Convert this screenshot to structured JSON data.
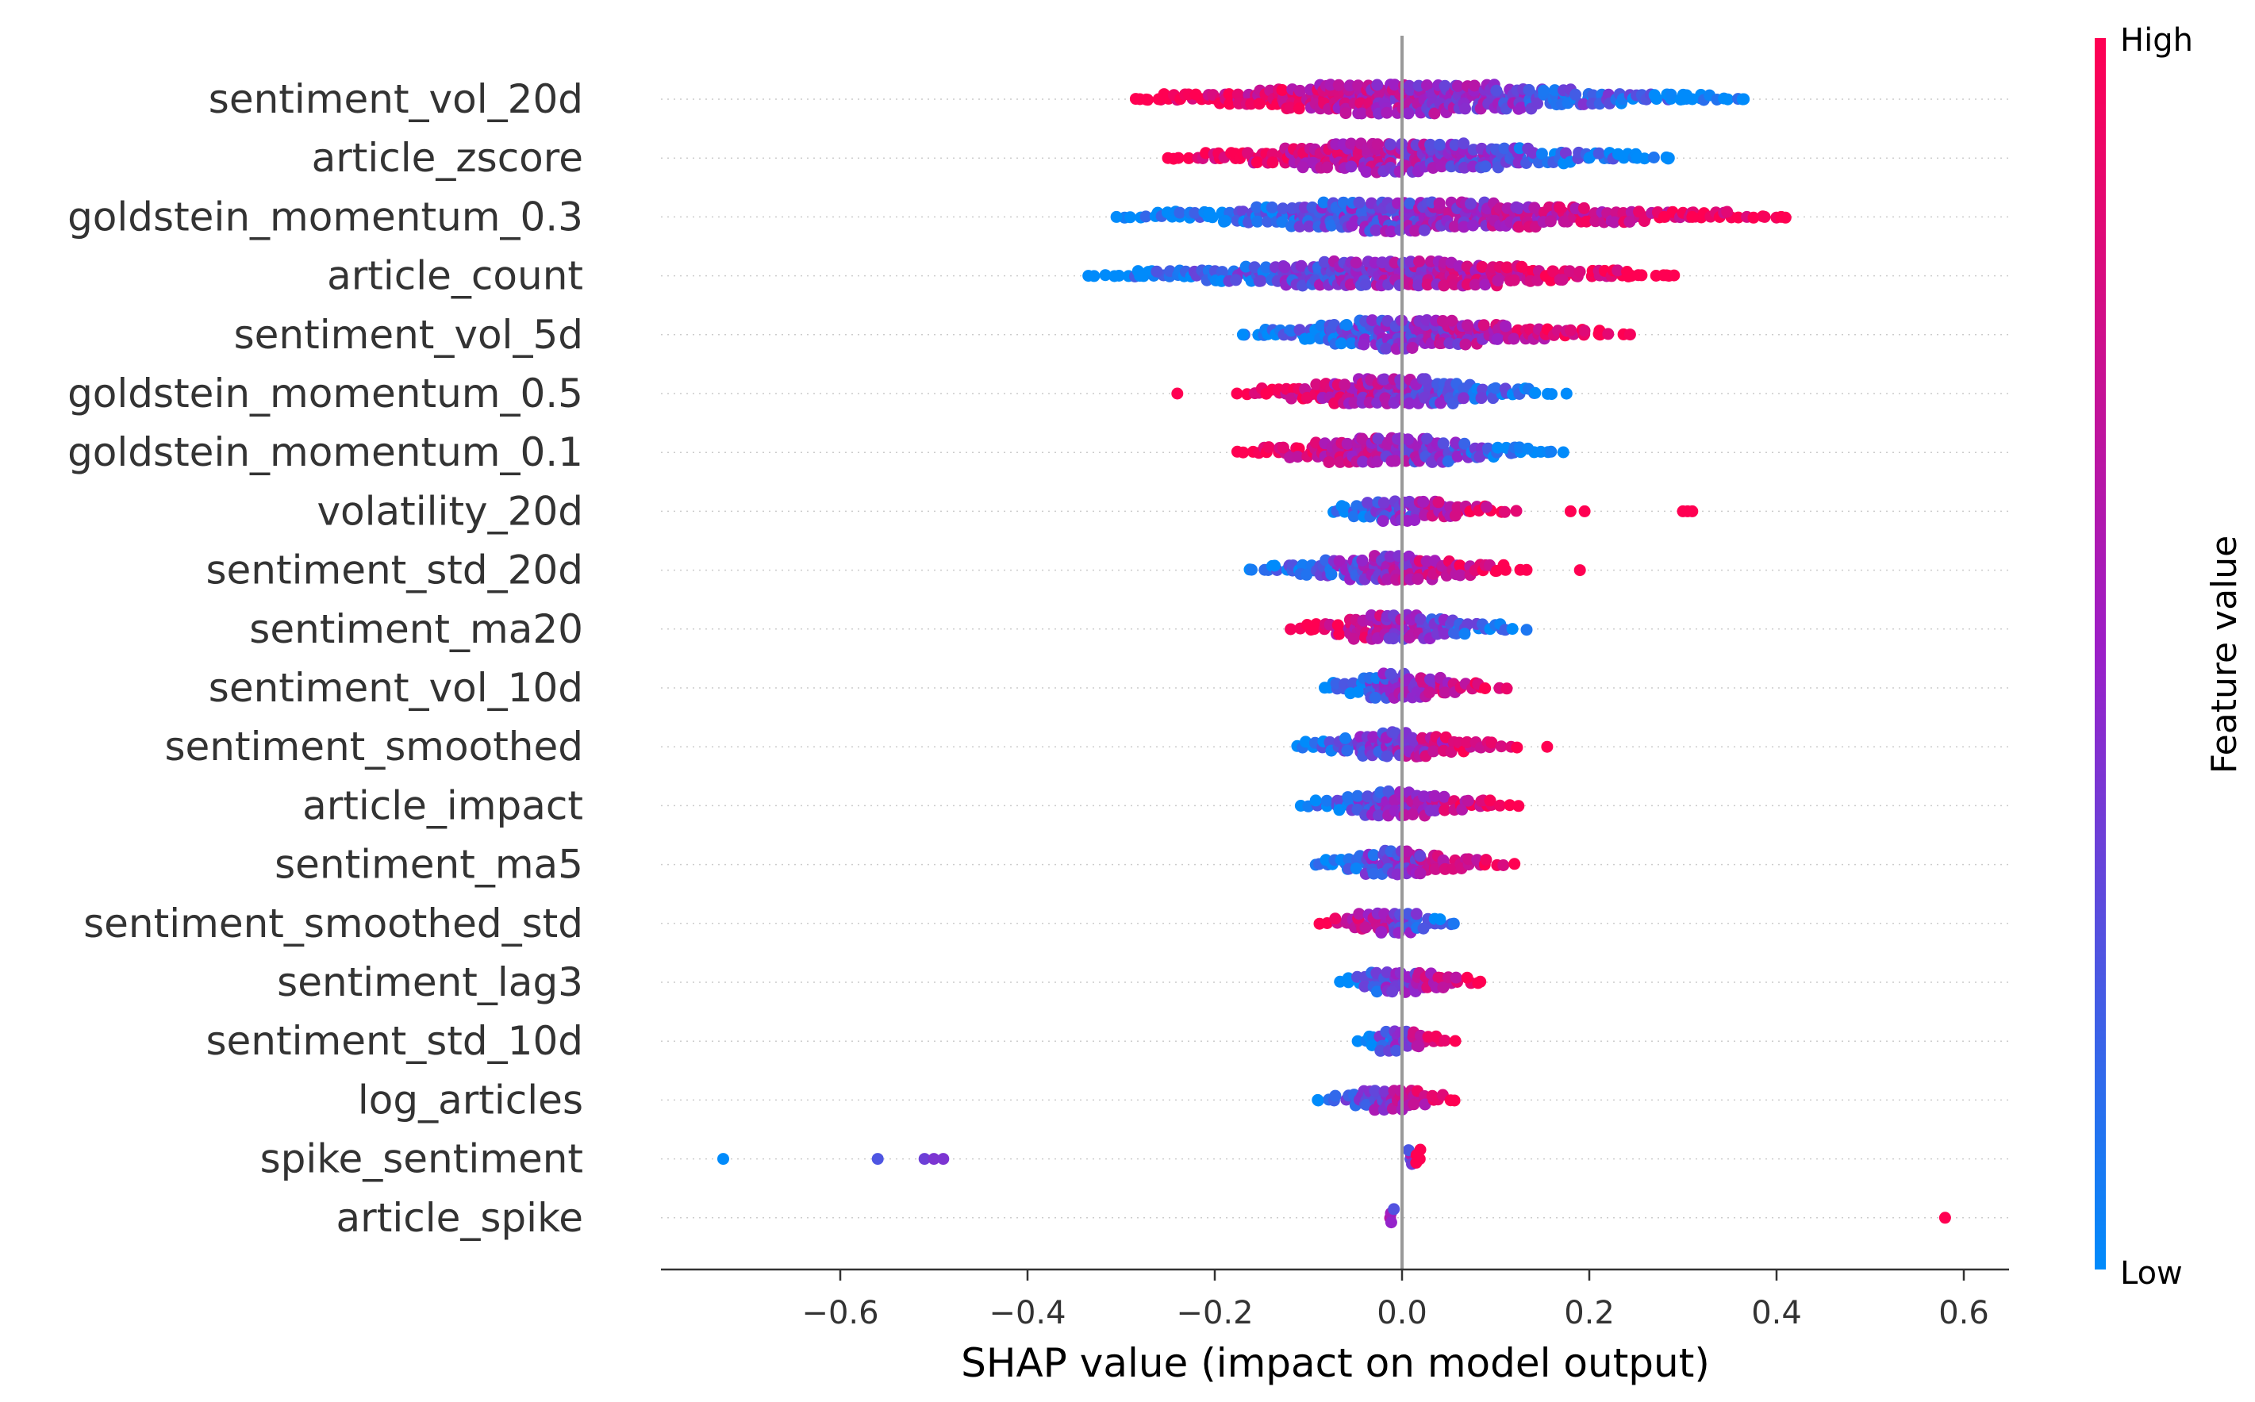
{
  "chart_data": {
    "type": "scatter",
    "subtype": "shap-beeswarm",
    "xlabel": "SHAP value (impact on model output)",
    "xlim": [
      -0.79,
      0.65
    ],
    "xticks": [
      -0.6,
      -0.4,
      -0.2,
      0.0,
      0.2,
      0.4,
      0.6
    ],
    "xtick_labels": [
      "−0.6",
      "−0.4",
      "−0.2",
      "0.0",
      "0.2",
      "0.4",
      "0.6"
    ],
    "zero_line": 0.0,
    "grid": false,
    "colorbar": {
      "label": "Feature value",
      "high_label": "High",
      "low_label": "Low",
      "low_color": "#008bfb",
      "mid_color": "#9b1fc8",
      "high_color": "#ff0052"
    },
    "features": [
      {
        "name": "sentiment_vol_20d",
        "low": -0.29,
        "high": 0.37,
        "density": 1.0,
        "color_dir": -1,
        "outliers": [
          [
            -0.26,
            1.0
          ],
          [
            -0.28,
            1.0
          ],
          [
            0.3,
            0.0
          ],
          [
            0.31,
            0.0
          ],
          [
            0.365,
            0.0
          ]
        ]
      },
      {
        "name": "article_zscore",
        "low": -0.25,
        "high": 0.29,
        "density": 0.95,
        "color_dir": -1,
        "outliers": [
          [
            -0.25,
            1.0
          ],
          [
            0.285,
            0.0
          ]
        ]
      },
      {
        "name": "goldstein_momentum_0.3",
        "low": -0.3,
        "high": 0.41,
        "density": 0.95,
        "color_dir": 1,
        "outliers": [
          [
            -0.305,
            0.0
          ],
          [
            0.28,
            1.0
          ],
          [
            0.31,
            1.0
          ],
          [
            0.405,
            1.0
          ]
        ]
      },
      {
        "name": "article_count",
        "low": -0.33,
        "high": 0.29,
        "density": 0.9,
        "color_dir": 1,
        "outliers": [
          [
            -0.335,
            0.0
          ],
          [
            -0.28,
            0.0
          ],
          [
            0.245,
            1.0
          ],
          [
            0.285,
            1.0
          ]
        ]
      },
      {
        "name": "sentiment_vol_5d",
        "low": -0.17,
        "high": 0.24,
        "density": 0.95,
        "color_dir": 1,
        "outliers": [
          [
            -0.17,
            0.0
          ]
        ]
      },
      {
        "name": "goldstein_momentum_0.5",
        "low": -0.18,
        "high": 0.17,
        "density": 0.9,
        "color_dir": -1,
        "outliers": [
          [
            -0.24,
            1.0
          ]
        ]
      },
      {
        "name": "goldstein_momentum_0.1",
        "low": -0.18,
        "high": 0.17,
        "density": 0.9,
        "color_dir": -1,
        "outliers": []
      },
      {
        "name": "volatility_20d",
        "low": -0.08,
        "high": 0.12,
        "density": 0.75,
        "color_dir": 1,
        "outliers": [
          [
            0.18,
            1.0
          ],
          [
            0.195,
            1.0
          ],
          [
            0.3,
            1.0
          ],
          [
            0.305,
            1.0
          ],
          [
            0.31,
            1.0
          ]
        ]
      },
      {
        "name": "sentiment_std_20d",
        "low": -0.17,
        "high": 0.13,
        "density": 0.8,
        "color_dir": 1,
        "outliers": [
          [
            0.19,
            1.0
          ]
        ]
      },
      {
        "name": "sentiment_ma20",
        "low": -0.12,
        "high": 0.13,
        "density": 0.85,
        "color_dir": -1,
        "outliers": []
      },
      {
        "name": "sentiment_vol_10d",
        "low": -0.09,
        "high": 0.11,
        "density": 0.8,
        "color_dir": 1,
        "outliers": []
      },
      {
        "name": "sentiment_smoothed",
        "low": -0.12,
        "high": 0.12,
        "density": 0.8,
        "color_dir": 1,
        "outliers": [
          [
            0.155,
            1.0
          ]
        ]
      },
      {
        "name": "article_impact",
        "low": -0.11,
        "high": 0.12,
        "density": 0.8,
        "color_dir": 1,
        "outliers": []
      },
      {
        "name": "sentiment_ma5",
        "low": -0.1,
        "high": 0.12,
        "density": 0.8,
        "color_dir": 1,
        "outliers": []
      },
      {
        "name": "sentiment_smoothed_std",
        "low": -0.09,
        "high": 0.06,
        "density": 0.75,
        "color_dir": -1,
        "outliers": []
      },
      {
        "name": "sentiment_lag3",
        "low": -0.07,
        "high": 0.09,
        "density": 0.7,
        "color_dir": 1,
        "outliers": []
      },
      {
        "name": "sentiment_std_10d",
        "low": -0.05,
        "high": 0.06,
        "density": 0.7,
        "color_dir": 1,
        "outliers": []
      },
      {
        "name": "log_articles",
        "low": -0.09,
        "high": 0.06,
        "density": 0.7,
        "color_dir": 1,
        "outliers": [
          [
            -0.09,
            0.0
          ]
        ]
      },
      {
        "name": "spike_sentiment",
        "low": 0.005,
        "high": 0.015,
        "density": 0.3,
        "color_dir": 1,
        "outliers": [
          [
            -0.725,
            0.0
          ],
          [
            -0.56,
            0.25
          ],
          [
            -0.51,
            0.35
          ],
          [
            -0.5,
            0.4
          ],
          [
            -0.49,
            0.4
          ]
        ]
      },
      {
        "name": "article_spike",
        "low": -0.015,
        "high": -0.008,
        "density": 0.3,
        "color_dir": -1,
        "outliers": [
          [
            0.58,
            1.0
          ]
        ]
      }
    ]
  }
}
